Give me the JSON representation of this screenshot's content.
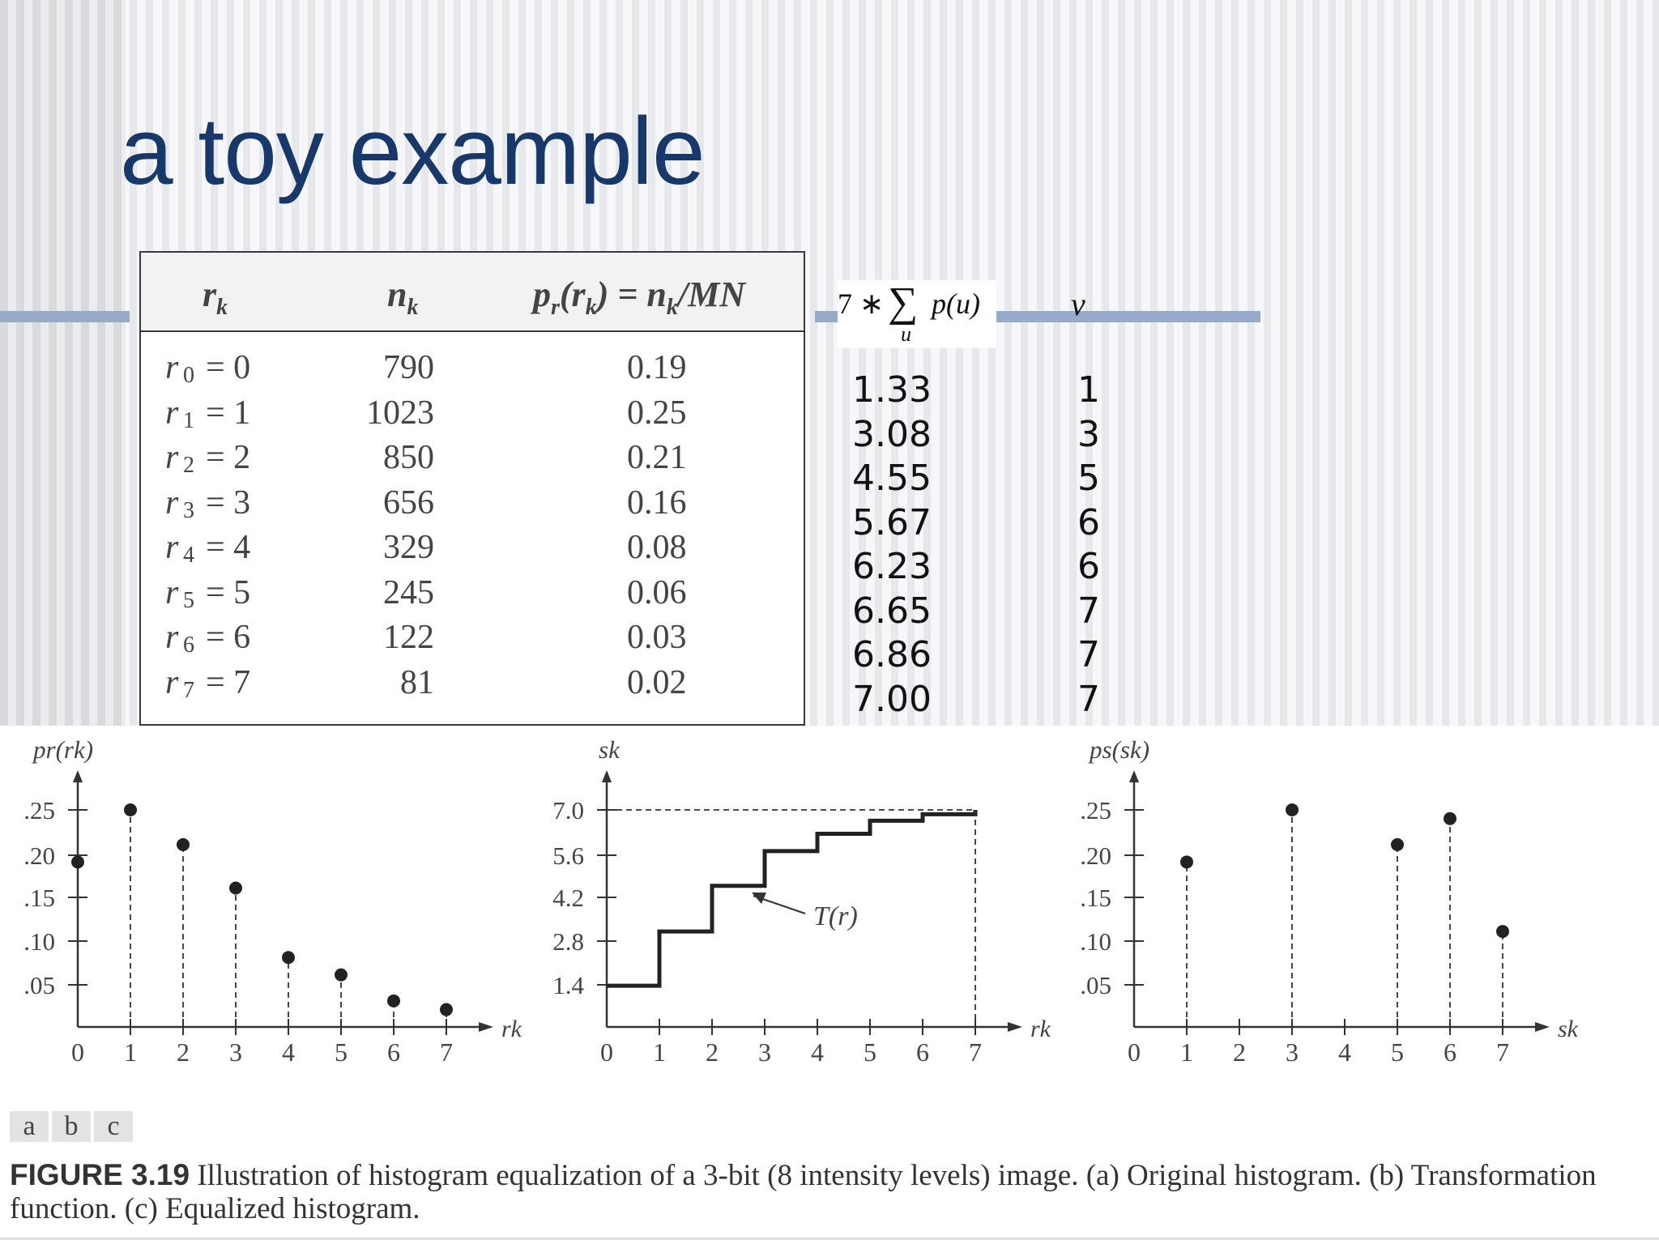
{
  "slide": {
    "title": "a toy example"
  },
  "table": {
    "headers": {
      "rk": "r",
      "rk_sub": "k",
      "nk": "n",
      "nk_sub": "k",
      "prob": "p",
      "prob_sub": "r",
      "prob_arg": "(r",
      "prob_arg_sub": "k",
      "prob_eq": ") = n",
      "prob_sub2": "k",
      "prob_tail": "/MN"
    },
    "rows": [
      {
        "r": "r",
        "sub": "0",
        "eq": "= 0",
        "n": "790",
        "p": "0.19"
      },
      {
        "r": "r",
        "sub": "1",
        "eq": "= 1",
        "n": "1023",
        "p": "0.25"
      },
      {
        "r": "r",
        "sub": "2",
        "eq": "= 2",
        "n": "850",
        "p": "0.21"
      },
      {
        "r": "r",
        "sub": "3",
        "eq": "= 3",
        "n": "656",
        "p": "0.16"
      },
      {
        "r": "r",
        "sub": "4",
        "eq": "= 4",
        "n": "329",
        "p": "0.08"
      },
      {
        "r": "r",
        "sub": "5",
        "eq": "= 5",
        "n": "245",
        "p": "0.06"
      },
      {
        "r": "r",
        "sub": "6",
        "eq": "= 6",
        "n": "122",
        "p": "0.03"
      },
      {
        "r": "r",
        "sub": "7",
        "eq": "= 7",
        "n": "81",
        "p": "0.02"
      }
    ]
  },
  "formula": {
    "prefix": "7 ∗",
    "sigma": "∑",
    "sub": "u",
    "body": "p(u)",
    "v_header": "v"
  },
  "cumulative": [
    "1.33",
    "3.08",
    "4.55",
    "5.67",
    "6.23",
    "6.65",
    "6.86",
    "7.00"
  ],
  "rounded": [
    "1",
    "3",
    "5",
    "6",
    "6",
    "7",
    "7",
    "7"
  ],
  "chart_data": [
    {
      "type": "scatter",
      "title": "",
      "ylabel": "pr(rk)",
      "xlabel": "rk",
      "x": [
        0,
        1,
        2,
        3,
        4,
        5,
        6,
        7
      ],
      "values": [
        0.19,
        0.25,
        0.21,
        0.16,
        0.08,
        0.06,
        0.03,
        0.02
      ],
      "ylim": [
        0,
        0.25
      ],
      "yticks": [
        ".25",
        ".20",
        ".15",
        ".10",
        ".05"
      ],
      "xticks": [
        "0",
        "1",
        "2",
        "3",
        "4",
        "5",
        "6",
        "7"
      ]
    },
    {
      "type": "line",
      "title": "",
      "ylabel": "sk",
      "xlabel": "rk",
      "annotation": "T(r)",
      "x": [
        0,
        1,
        2,
        3,
        4,
        5,
        6,
        7
      ],
      "values": [
        1.33,
        3.08,
        4.55,
        5.67,
        6.23,
        6.65,
        6.86,
        7.0
      ],
      "ylim": [
        0,
        7.0
      ],
      "yticks": [
        "7.0",
        "5.6",
        "4.2",
        "2.8",
        "1.4"
      ],
      "xticks": [
        "0",
        "1",
        "2",
        "3",
        "4",
        "5",
        "6",
        "7"
      ]
    },
    {
      "type": "scatter",
      "title": "",
      "ylabel": "ps(sk)",
      "xlabel": "sk",
      "x": [
        1,
        3,
        5,
        6,
        7
      ],
      "values": [
        0.19,
        0.25,
        0.21,
        0.24,
        0.11
      ],
      "ylim": [
        0,
        0.25
      ],
      "yticks": [
        ".25",
        ".20",
        ".15",
        ".10",
        ".05"
      ],
      "xticks": [
        "0",
        "1",
        "2",
        "3",
        "4",
        "5",
        "6",
        "7"
      ]
    }
  ],
  "panels": [
    "a",
    "b",
    "c"
  ],
  "caption": {
    "label": "FIGURE 3.19",
    "text": "Illustration of histogram equalization of a 3-bit (8 intensity levels) image. (a) Original histogram. (b) Transformation function. (c) Equalized histogram."
  },
  "colors": {
    "title": "#16386b",
    "rule": "#95abc9",
    "ink": "#333333"
  }
}
